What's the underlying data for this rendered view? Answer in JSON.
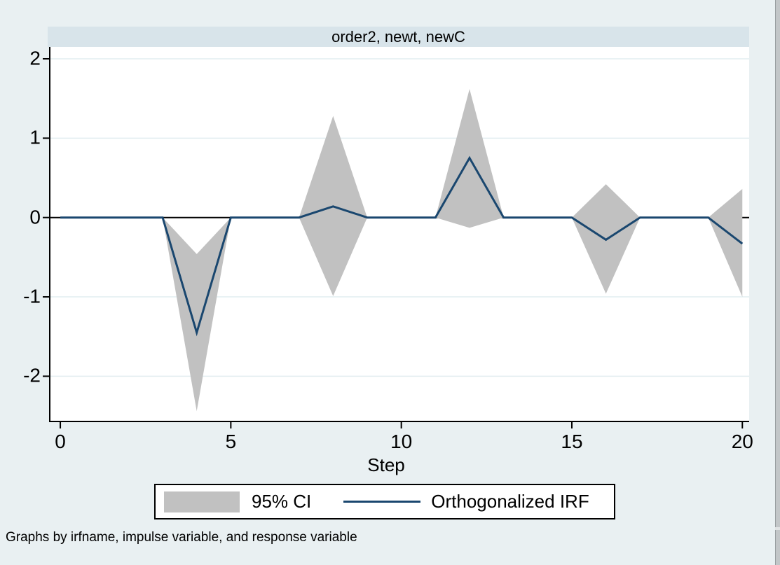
{
  "title": "order2, newt, newC",
  "axes": {
    "xlabel": "Step"
  },
  "legend": {
    "ci_label": "95% CI",
    "irf_label": "Orthogonalized IRF"
  },
  "footnote": "Graphs by irfname, impulse variable, and response variable",
  "colors": {
    "outer_bg": "#e9f0f2",
    "title_band_bg": "#d8e4ea",
    "plot_bg": "#ffffff",
    "gridline": "#e2edf0",
    "axis": "#000000",
    "zero_line": "#000000",
    "ci_fill": "#c1c1c1",
    "irf_line": "#1a476f",
    "legend_border": "#000000",
    "window_strip": "#c2c6c8"
  },
  "chart_data": {
    "type": "area+line",
    "title": "order2, newt, newC",
    "xlabel": "Step",
    "ylabel": "",
    "x": [
      0,
      1,
      2,
      3,
      4,
      5,
      6,
      7,
      8,
      9,
      10,
      11,
      12,
      13,
      14,
      15,
      16,
      17,
      18,
      19,
      20
    ],
    "series": [
      {
        "name": "Orthogonalized IRF",
        "type": "line",
        "values": [
          0,
          0,
          0,
          0,
          -1.45,
          0,
          0,
          0,
          0.14,
          0,
          0,
          0,
          0.75,
          0,
          0,
          0,
          -0.28,
          0,
          0,
          0,
          -0.33
        ]
      },
      {
        "name": "95% CI lower",
        "type": "band-lower",
        "values": [
          0,
          0,
          0,
          0,
          -2.44,
          0,
          0,
          0,
          -0.99,
          0,
          0,
          0,
          -0.13,
          0,
          0,
          0,
          -0.96,
          0,
          0,
          0,
          -1.0
        ]
      },
      {
        "name": "95% CI upper",
        "type": "band-upper",
        "values": [
          0,
          0,
          0,
          0,
          -0.46,
          0,
          0,
          0,
          1.28,
          0,
          0,
          0,
          1.62,
          0,
          0,
          0,
          0.42,
          0,
          0,
          0,
          0.36
        ]
      }
    ],
    "x_ticks": [
      0,
      5,
      10,
      15,
      20
    ],
    "y_ticks": [
      2,
      1,
      0,
      -1,
      -2
    ],
    "xlim": [
      -0.33,
      20.2
    ],
    "ylim": [
      -2.57,
      2.15
    ],
    "reference_line_y": 0,
    "grid": true,
    "legend_position": "bottom"
  }
}
